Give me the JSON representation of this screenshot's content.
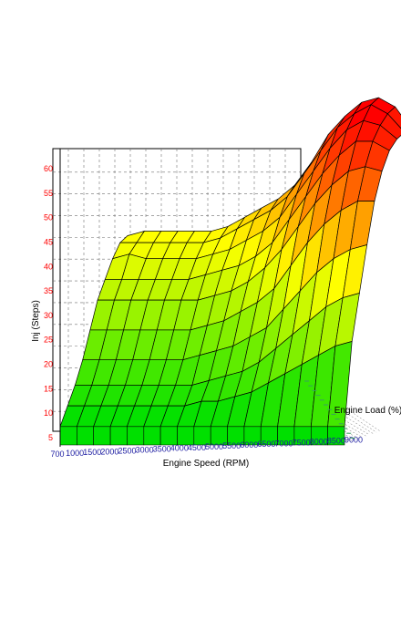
{
  "chart_data": {
    "type": "surface",
    "xlabel": "Engine Speed (RPM)",
    "ylabel": "Inj (Steps)",
    "zlabel": "Engine Load (%)",
    "zlim": [
      0,
      65
    ],
    "z_ticks": [
      "5",
      "10",
      "15",
      "20",
      "25",
      "30",
      "35",
      "40",
      "45",
      "50",
      "55",
      "60"
    ],
    "x_ticks": [
      "700",
      "1000",
      "1500",
      "2000",
      "2500",
      "3000",
      "3500",
      "4000",
      "4500",
      "5000",
      "5500",
      "6000",
      "6500",
      "7000",
      "7500",
      "8000",
      "8500",
      "9000"
    ],
    "load_rows": 10,
    "surface_values": [
      [
        4,
        4,
        4,
        4,
        4,
        4,
        4,
        4,
        4,
        4,
        4,
        4,
        4,
        4,
        4,
        4,
        4,
        4
      ],
      [
        7,
        7,
        7,
        7,
        7,
        7,
        7,
        7,
        8,
        8,
        9,
        10,
        12,
        14,
        16,
        18,
        20,
        21
      ],
      [
        10,
        10,
        10,
        10,
        10,
        10,
        10,
        10,
        11,
        12,
        13,
        15,
        18,
        21,
        24,
        27,
        29,
        30
      ],
      [
        14,
        14,
        14,
        14,
        14,
        14,
        14,
        15,
        16,
        17,
        19,
        21,
        25,
        29,
        33,
        36,
        38,
        39
      ],
      [
        19,
        19,
        19,
        19,
        19,
        19,
        19,
        20,
        21,
        23,
        25,
        28,
        33,
        38,
        42,
        45,
        47,
        47
      ],
      [
        24,
        24,
        24,
        24,
        24,
        24,
        24,
        25,
        26,
        28,
        31,
        35,
        40,
        45,
        49,
        52,
        53,
        52
      ],
      [
        27,
        27,
        27,
        27,
        27,
        27,
        28,
        29,
        30,
        32,
        35,
        40,
        45,
        50,
        54,
        57,
        57,
        55
      ],
      [
        30,
        31,
        30,
        30,
        30,
        30,
        31,
        32,
        34,
        36,
        39,
        44,
        49,
        54,
        58,
        60,
        59,
        56
      ],
      [
        32,
        32,
        32,
        32,
        32,
        32,
        33,
        35,
        37,
        39,
        42,
        47,
        52,
        57,
        60,
        62,
        60,
        56
      ],
      [
        32,
        33,
        33,
        33,
        33,
        33,
        34,
        36,
        38,
        40,
        43,
        48,
        54,
        58,
        61,
        62,
        60,
        55
      ]
    ],
    "grid": true
  },
  "colors": {
    "low": "#00e000",
    "mid": "#ffff00",
    "high": "#ff0000",
    "z_tick_color": "#ff0000",
    "x_tick_color": "#1a1aa0",
    "grid_color": "#707070"
  }
}
